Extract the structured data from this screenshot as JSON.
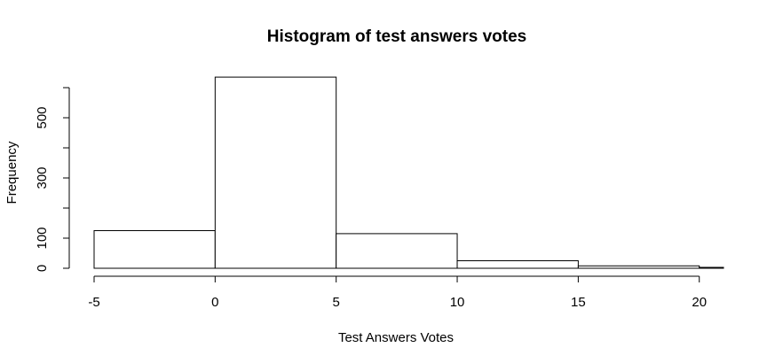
{
  "chart_data": {
    "type": "bar",
    "subtype": "histogram",
    "title": "Histogram of test answers votes",
    "xlabel": "Test Answers Votes",
    "ylabel": "Frequency",
    "bins": [
      {
        "start": -5,
        "end": 0,
        "count": 125
      },
      {
        "start": 0,
        "end": 5,
        "count": 635
      },
      {
        "start": 5,
        "end": 10,
        "count": 115
      },
      {
        "start": 10,
        "end": 15,
        "count": 25
      },
      {
        "start": 15,
        "end": 20,
        "count": 8
      },
      {
        "start": 20,
        "end": 25,
        "count": 3
      }
    ],
    "xlim": [
      -5,
      21
    ],
    "ylim": [
      0,
      610
    ],
    "x_ticks": [
      -5,
      0,
      5,
      10,
      15,
      20
    ],
    "y_ticks": [
      0,
      100,
      200,
      300,
      400,
      500,
      600
    ],
    "y_tick_labels": [
      "0",
      "100",
      "",
      "300",
      "",
      "500",
      ""
    ],
    "grid": false,
    "legend": "none",
    "colors": {
      "bar_fill": "#ffffff",
      "bar_stroke": "#000000",
      "axis": "#000000"
    }
  }
}
